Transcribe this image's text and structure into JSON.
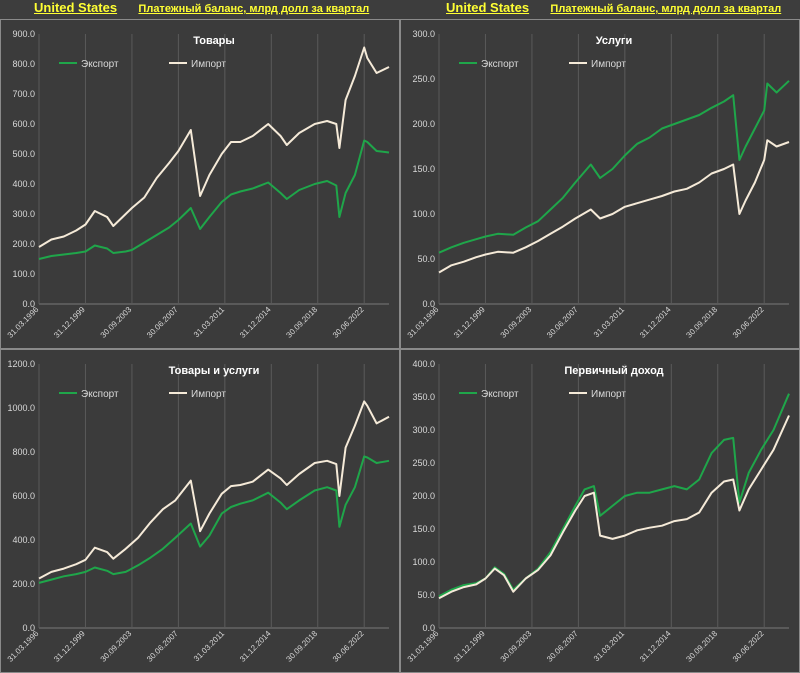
{
  "header": {
    "left": {
      "country": "United States",
      "subtitle": "Платежный баланс, млрд долл за квартал"
    },
    "right": {
      "country": "United States",
      "subtitle": "Платежный баланс, млрд долл за квартал"
    }
  },
  "colors": {
    "export": "#1fa64a",
    "import": "#f5ead8",
    "grid": "#5a5a5a",
    "text": "#d9d9d9",
    "title": "#ffffff"
  },
  "legend": {
    "export": "Экспорт",
    "import": "Импорт"
  },
  "x_ticks": [
    "31.03.1996",
    "31.12.1999",
    "30.09.2003",
    "30.06.2007",
    "31.03.2011",
    "31.12.2014",
    "30.09.2018",
    "30.06.2022"
  ],
  "chart_data": [
    {
      "type": "line",
      "title": "Товары",
      "x": [
        "1996Q1",
        "1997Q1",
        "1998Q1",
        "1999Q1",
        "1999Q4",
        "2000Q3",
        "2001Q3",
        "2002Q1",
        "2003Q1",
        "2003Q3",
        "2004Q3",
        "2005Q3",
        "2006Q3",
        "2007Q2",
        "2008Q2",
        "2009Q1",
        "2009Q4",
        "2010Q4",
        "2011Q3",
        "2012Q2",
        "2013Q2",
        "2014Q3",
        "2015Q3",
        "2016Q1",
        "2017Q1",
        "2018Q2",
        "2019Q2",
        "2020Q1",
        "2020Q2",
        "2020Q4",
        "2021Q3",
        "2022Q2",
        "2022Q3",
        "2023Q2",
        "2024Q2"
      ],
      "series": [
        {
          "name": "Экспорт",
          "values": [
            150,
            160,
            165,
            170,
            175,
            195,
            185,
            170,
            175,
            180,
            205,
            230,
            255,
            280,
            320,
            250,
            290,
            340,
            365,
            375,
            385,
            405,
            370,
            350,
            380,
            400,
            410,
            395,
            290,
            370,
            430,
            545,
            540,
            510,
            505
          ]
        },
        {
          "name": "Импорт",
          "values": [
            190,
            215,
            225,
            245,
            265,
            310,
            290,
            260,
            300,
            320,
            355,
            420,
            470,
            510,
            580,
            360,
            430,
            500,
            540,
            540,
            560,
            600,
            560,
            530,
            570,
            600,
            610,
            600,
            520,
            680,
            760,
            855,
            820,
            770,
            790
          ]
        }
      ],
      "ylim": [
        0,
        900
      ],
      "yticks": [
        0,
        100,
        200,
        300,
        400,
        500,
        600,
        700,
        800,
        900
      ]
    },
    {
      "type": "line",
      "title": "Услуги",
      "x": [
        "1996Q1",
        "1997Q1",
        "1998Q1",
        "1999Q1",
        "1999Q4",
        "2000Q4",
        "2002Q1",
        "2003Q1",
        "2004Q1",
        "2005Q1",
        "2006Q1",
        "2007Q1",
        "2008Q2",
        "2009Q1",
        "2010Q1",
        "2011Q1",
        "2012Q1",
        "2013Q1",
        "2014Q1",
        "2015Q1",
        "2016Q1",
        "2017Q1",
        "2018Q1",
        "2019Q1",
        "2019Q4",
        "2020Q2",
        "2020Q4",
        "2021Q3",
        "2022Q2",
        "2022Q3",
        "2023Q2",
        "2024Q2"
      ],
      "series": [
        {
          "name": "Экспорт",
          "values": [
            57,
            63,
            68,
            72,
            75,
            78,
            77,
            85,
            92,
            105,
            118,
            135,
            155,
            140,
            150,
            165,
            178,
            185,
            195,
            200,
            205,
            210,
            218,
            225,
            232,
            160,
            175,
            195,
            215,
            245,
            235,
            248
          ]
        },
        {
          "name": "Импорт",
          "values": [
            35,
            43,
            47,
            52,
            55,
            58,
            57,
            63,
            70,
            78,
            86,
            95,
            105,
            95,
            100,
            108,
            112,
            116,
            120,
            125,
            128,
            135,
            145,
            150,
            155,
            100,
            115,
            135,
            160,
            182,
            175,
            180
          ]
        }
      ],
      "ylim": [
        0,
        300
      ],
      "yticks": [
        0,
        50,
        100,
        150,
        200,
        250,
        300
      ]
    },
    {
      "type": "line",
      "title": "Товары и услуги",
      "x": [
        "1996Q1",
        "1997Q1",
        "1998Q1",
        "1999Q1",
        "1999Q4",
        "2000Q3",
        "2001Q3",
        "2002Q1",
        "2003Q1",
        "2004Q1",
        "2005Q1",
        "2006Q1",
        "2007Q1",
        "2008Q2",
        "2009Q1",
        "2009Q4",
        "2010Q4",
        "2011Q3",
        "2012Q2",
        "2013Q2",
        "2014Q3",
        "2015Q3",
        "2016Q1",
        "2017Q1",
        "2018Q2",
        "2019Q2",
        "2020Q1",
        "2020Q2",
        "2020Q4",
        "2021Q3",
        "2022Q2",
        "2022Q3",
        "2023Q2",
        "2024Q2"
      ],
      "series": [
        {
          "name": "Экспорт",
          "values": [
            205,
            220,
            235,
            245,
            255,
            275,
            260,
            245,
            255,
            285,
            320,
            360,
            410,
            475,
            370,
            420,
            520,
            550,
            565,
            580,
            615,
            570,
            540,
            580,
            625,
            640,
            625,
            460,
            560,
            640,
            780,
            775,
            750,
            760
          ]
        },
        {
          "name": "Импорт",
          "values": [
            225,
            255,
            270,
            290,
            310,
            365,
            345,
            315,
            360,
            410,
            480,
            540,
            580,
            670,
            440,
            520,
            610,
            645,
            650,
            665,
            720,
            680,
            650,
            700,
            750,
            760,
            745,
            600,
            820,
            920,
            1030,
            1010,
            930,
            960
          ]
        }
      ],
      "ylim": [
        0,
        1200
      ],
      "yticks": [
        0,
        200,
        400,
        600,
        800,
        1000,
        1200
      ]
    },
    {
      "type": "line",
      "title": "Первичный доход",
      "x": [
        "1996Q1",
        "1997Q1",
        "1998Q1",
        "1999Q1",
        "1999Q4",
        "2000Q3",
        "2001Q2",
        "2002Q1",
        "2003Q1",
        "2004Q1",
        "2005Q1",
        "2006Q1",
        "2007Q1",
        "2007Q4",
        "2008Q3",
        "2009Q1",
        "2010Q1",
        "2011Q1",
        "2012Q1",
        "2013Q1",
        "2014Q1",
        "2015Q1",
        "2016Q1",
        "2017Q1",
        "2018Q1",
        "2019Q1",
        "2019Q4",
        "2020Q2",
        "2021Q1",
        "2022Q1",
        "2023Q1",
        "2024Q2"
      ],
      "series": [
        {
          "name": "Экспорт",
          "values": [
            48,
            58,
            65,
            68,
            75,
            92,
            82,
            58,
            75,
            90,
            115,
            150,
            185,
            210,
            215,
            170,
            185,
            200,
            205,
            205,
            210,
            215,
            210,
            225,
            265,
            285,
            288,
            190,
            235,
            270,
            300,
            355
          ]
        },
        {
          "name": "Импорт",
          "values": [
            45,
            55,
            62,
            66,
            75,
            90,
            80,
            55,
            75,
            88,
            110,
            145,
            178,
            200,
            205,
            140,
            135,
            140,
            148,
            152,
            155,
            162,
            165,
            175,
            205,
            222,
            225,
            178,
            210,
            240,
            270,
            322
          ]
        }
      ],
      "ylim": [
        0,
        400
      ],
      "yticks": [
        0,
        50,
        100,
        150,
        200,
        250,
        300,
        350,
        400
      ]
    }
  ]
}
